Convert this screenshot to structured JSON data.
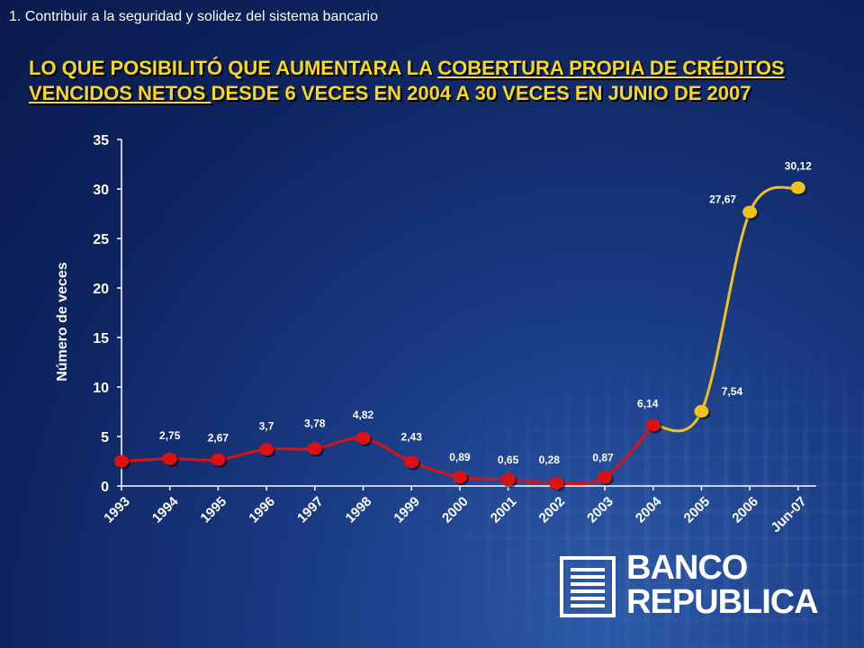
{
  "header": {
    "subtitle": "1.  Contribuir a la seguridad y solidez del sistema  bancario",
    "title_part1": "LO QUE POSIBILITÓ QUE AUMENTARA LA ",
    "title_underlined": "COBERTURA PROPIA DE CRÉDITOS VENCIDOS NETOS ",
    "title_part2": "DESDE 6 VECES EN 2004 A 30 VECES EN JUNIO DE 2007"
  },
  "logo": {
    "line1": "BANCO",
    "line2": "REPUBLICA"
  },
  "colors": {
    "red_series": "#dd1111",
    "yellow_series": "#f2c21c",
    "axis": "#ffffff",
    "background": "#0e2460"
  },
  "chart_data": {
    "type": "line",
    "xlabel": "",
    "ylabel": "Número de veces",
    "ylim": [
      0,
      35
    ],
    "yticks": [
      0,
      5,
      10,
      15,
      20,
      25,
      30,
      35
    ],
    "grid": false,
    "categories": [
      "1993",
      "1994",
      "1995",
      "1996",
      "1997",
      "1998",
      "1999",
      "2000",
      "2001",
      "2002",
      "2003",
      "2004",
      "2005",
      "2006",
      "Jun-07"
    ],
    "series": [
      {
        "color": "#dd1111",
        "points": [
          {
            "x": "1993",
            "y": 2.5,
            "label": ""
          },
          {
            "x": "1994",
            "y": 2.75,
            "label": "2,75"
          },
          {
            "x": "1995",
            "y": 2.67,
            "label": "2,67"
          },
          {
            "x": "1996",
            "y": 3.7,
            "label": "3,7"
          },
          {
            "x": "1997",
            "y": 3.78,
            "label": "3,78"
          },
          {
            "x": "1998",
            "y": 4.82,
            "label": "4,82"
          },
          {
            "x": "1999",
            "y": 2.43,
            "label": "2,43"
          },
          {
            "x": "2000",
            "y": 0.89,
            "label": "0,89"
          },
          {
            "x": "2001",
            "y": 0.65,
            "label": "0,65"
          },
          {
            "x": "2002",
            "y": 0.28,
            "label": "0,28"
          },
          {
            "x": "2003",
            "y": 0.87,
            "label": "0,87"
          },
          {
            "x": "2004",
            "y": 6.14,
            "label": "6,14"
          }
        ]
      },
      {
        "color": "#f2c21c",
        "points": [
          {
            "x": "2004",
            "y": 6.14,
            "label": ""
          },
          {
            "x": "2005",
            "y": 7.54,
            "label": "7,54"
          },
          {
            "x": "2006",
            "y": 27.67,
            "label": "27,67"
          },
          {
            "x": "Jun-07",
            "y": 30.12,
            "label": "30,12"
          }
        ]
      }
    ]
  }
}
